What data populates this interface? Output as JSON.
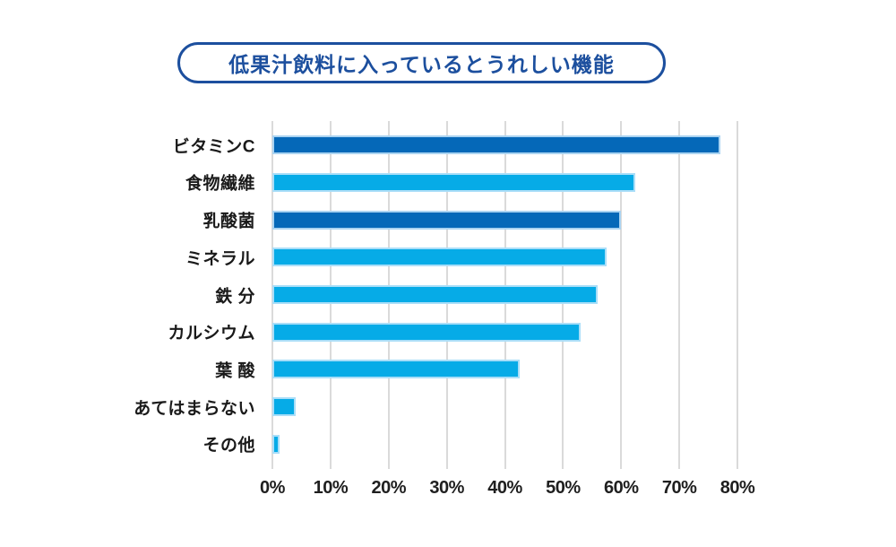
{
  "title": {
    "text": "低果汁飲料に入っているとうれしい機能"
  },
  "colors": {
    "title_blue": "#1c4f9e",
    "bar_dark": "#0568b8",
    "bar_light": "#06abe7",
    "grid": "#dadada",
    "text": "#1a1a1a"
  },
  "chart_data": {
    "type": "bar",
    "orientation": "horizontal",
    "title": "低果汁飲料に入っているとうれしい機能",
    "categories": [
      "ビタミンC",
      "食物繊維",
      "乳酸菌",
      "ミネラル",
      "鉄 分",
      "カルシウム",
      "葉 酸",
      "あてはまらない",
      "その他"
    ],
    "values": [
      77,
      62.5,
      60,
      57.5,
      56,
      53,
      42.5,
      4,
      1.2
    ],
    "bar_colors": [
      "#0568b8",
      "#06abe7",
      "#0568b8",
      "#06abe7",
      "#06abe7",
      "#06abe7",
      "#06abe7",
      "#06abe7",
      "#06abe7"
    ],
    "xlabel": "",
    "ylabel": "",
    "xlim": [
      0,
      80
    ],
    "x_ticks": [
      0,
      10,
      20,
      30,
      40,
      50,
      60,
      70,
      80
    ],
    "x_tick_labels": [
      "0%",
      "10%",
      "20%",
      "30%",
      "40%",
      "50%",
      "60%",
      "70%",
      "80%"
    ],
    "grid": "vertical-only",
    "legend": "none",
    "data_labels": "none"
  }
}
